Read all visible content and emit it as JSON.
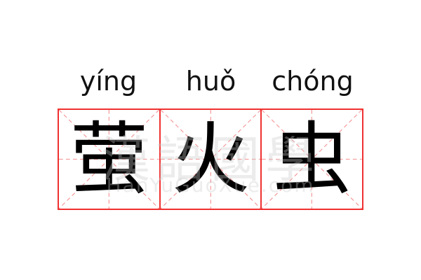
{
  "entries": [
    {
      "pinyin": "yíng",
      "character": "萤"
    },
    {
      "pinyin": "huǒ",
      "character": "火"
    },
    {
      "pinyin": "chóng",
      "character": "虫"
    }
  ],
  "watermark": {
    "text": "漢語國學",
    "url": "HanYuGuoXue.com"
  },
  "colors": {
    "grid": "#f03030",
    "guide": "#f5a0a0",
    "text": "#000000"
  }
}
